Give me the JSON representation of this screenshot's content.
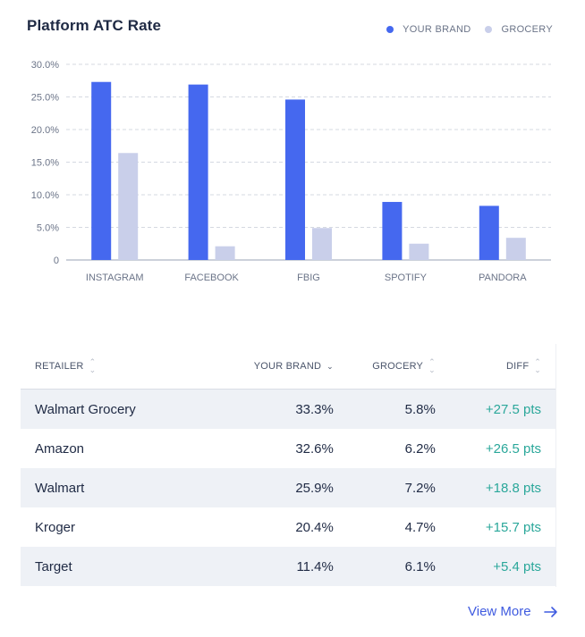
{
  "chart_data": {
    "type": "bar",
    "title": "Platform ATC Rate",
    "categories": [
      "INSTAGRAM",
      "FACEBOOK",
      "FBIG",
      "SPOTIFY",
      "PANDORA"
    ],
    "series": [
      {
        "name": "YOUR BRAND",
        "values": [
          27.3,
          26.9,
          24.6,
          8.9,
          8.3
        ],
        "color": "#4568ef"
      },
      {
        "name": "GROCERY",
        "values": [
          16.4,
          2.1,
          4.9,
          2.5,
          3.4
        ],
        "color": "#c9cfea"
      }
    ],
    "yticks": [
      "0",
      "5.0%",
      "10.0%",
      "15.0%",
      "20.0%",
      "25.0%",
      "30.0%"
    ],
    "ylim": [
      0,
      30
    ],
    "grid": true,
    "legend_position": "top-right"
  },
  "table": {
    "headers": [
      "RETAILER",
      "YOUR BRAND",
      "GROCERY",
      "DIFF"
    ],
    "sorted_column": "YOUR BRAND",
    "rows": [
      {
        "retailer": "Walmart Grocery",
        "your_brand": "33.3%",
        "grocery": "5.8%",
        "diff": "+27.5 pts"
      },
      {
        "retailer": "Amazon",
        "your_brand": "32.6%",
        "grocery": "6.2%",
        "diff": "+26.5 pts"
      },
      {
        "retailer": "Walmart",
        "your_brand": "25.9%",
        "grocery": "7.2%",
        "diff": "+18.8 pts"
      },
      {
        "retailer": "Kroger",
        "your_brand": "20.4%",
        "grocery": "4.7%",
        "diff": "+15.7 pts"
      },
      {
        "retailer": "Target",
        "your_brand": "11.4%",
        "grocery": "6.1%",
        "diff": "+5.4 pts"
      }
    ]
  },
  "view_more_label": "View More",
  "colors": {
    "accent": "#3f5be0",
    "positive": "#2aa79a",
    "row_alt": "#eef1f6"
  }
}
